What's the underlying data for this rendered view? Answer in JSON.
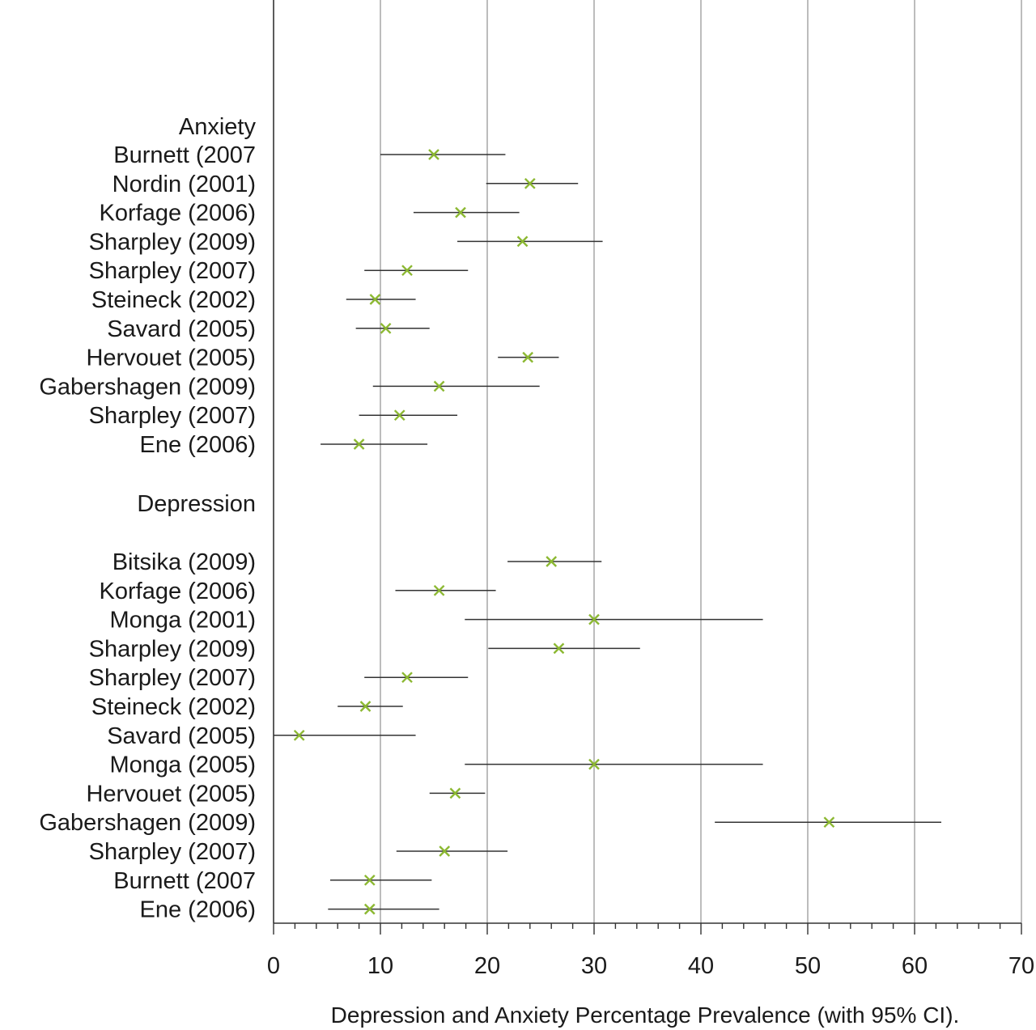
{
  "chart_data": {
    "type": "forest",
    "xlabel": "Depression and Anxiety Percentage Prevalence  (with 95% CI).",
    "xlim": [
      0,
      70
    ],
    "x_major_ticks": [
      0,
      10,
      20,
      30,
      40,
      50,
      60,
      70
    ],
    "x_minor_step": 2,
    "grid": "vertical major gridlines",
    "marker": "x",
    "colors": {
      "marker": "#8cb832",
      "ci_line": "#333333",
      "grid": "#999999",
      "axis": "#333333"
    },
    "sections": [
      {
        "name": "Anxiety",
        "studies": [
          {
            "label": "Burnett (2007",
            "estimate": 15.0,
            "ci": [
              10.0,
              21.7
            ]
          },
          {
            "label": "Nordin (2001)",
            "estimate": 24.0,
            "ci": [
              19.9,
              28.5
            ]
          },
          {
            "label": "Korfage (2006)",
            "estimate": 17.5,
            "ci": [
              13.1,
              23.0
            ]
          },
          {
            "label": "Sharpley (2009)",
            "estimate": 23.3,
            "ci": [
              17.2,
              30.8
            ]
          },
          {
            "label": "Sharpley (2007)",
            "estimate": 12.5,
            "ci": [
              8.5,
              18.2
            ]
          },
          {
            "label": "Steineck (2002)",
            "estimate": 9.5,
            "ci": [
              6.8,
              13.3
            ]
          },
          {
            "label": "Savard (2005)",
            "estimate": 10.5,
            "ci": [
              7.7,
              14.6
            ]
          },
          {
            "label": "Hervouet (2005)",
            "estimate": 23.8,
            "ci": [
              21.0,
              26.7
            ]
          },
          {
            "label": "Gabershagen (2009)",
            "estimate": 15.5,
            "ci": [
              9.3,
              24.9
            ]
          },
          {
            "label": "Sharpley (2007)",
            "estimate": 11.8,
            "ci": [
              8.0,
              17.2
            ]
          },
          {
            "label": "Ene (2006)",
            "estimate": 8.0,
            "ci": [
              4.4,
              14.4
            ]
          }
        ]
      },
      {
        "name": "Depression",
        "studies": [
          {
            "label": "Bitsika (2009)",
            "estimate": 26.0,
            "ci": [
              21.9,
              30.7
            ]
          },
          {
            "label": "Korfage (2006)",
            "estimate": 15.5,
            "ci": [
              11.4,
              20.8
            ]
          },
          {
            "label": "Monga (2001)",
            "estimate": 30.0,
            "ci": [
              17.9,
              45.8
            ]
          },
          {
            "label": "Sharpley (2009)",
            "estimate": 26.7,
            "ci": [
              20.1,
              34.3
            ]
          },
          {
            "label": "Sharpley (2007)",
            "estimate": 12.5,
            "ci": [
              8.5,
              18.2
            ]
          },
          {
            "label": "Steineck (2002)",
            "estimate": 8.6,
            "ci": [
              6.0,
              12.1
            ]
          },
          {
            "label": "Savard (2005)",
            "estimate": 2.4,
            "ci": [
              0.0,
              13.3
            ]
          },
          {
            "label": "Monga (2005)",
            "estimate": 30.0,
            "ci": [
              17.9,
              45.8
            ]
          },
          {
            "label": "Hervouet (2005)",
            "estimate": 17.0,
            "ci": [
              14.6,
              19.8
            ]
          },
          {
            "label": "Gabershagen (2009)",
            "estimate": 52.0,
            "ci": [
              41.3,
              62.5
            ]
          },
          {
            "label": "Sharpley (2007)",
            "estimate": 16.0,
            "ci": [
              11.5,
              21.9
            ]
          },
          {
            "label": "Burnett (2007",
            "estimate": 9.0,
            "ci": [
              5.3,
              14.8
            ]
          },
          {
            "label": "Ene (2006)",
            "estimate": 9.0,
            "ci": [
              5.1,
              15.5
            ]
          }
        ]
      }
    ]
  }
}
